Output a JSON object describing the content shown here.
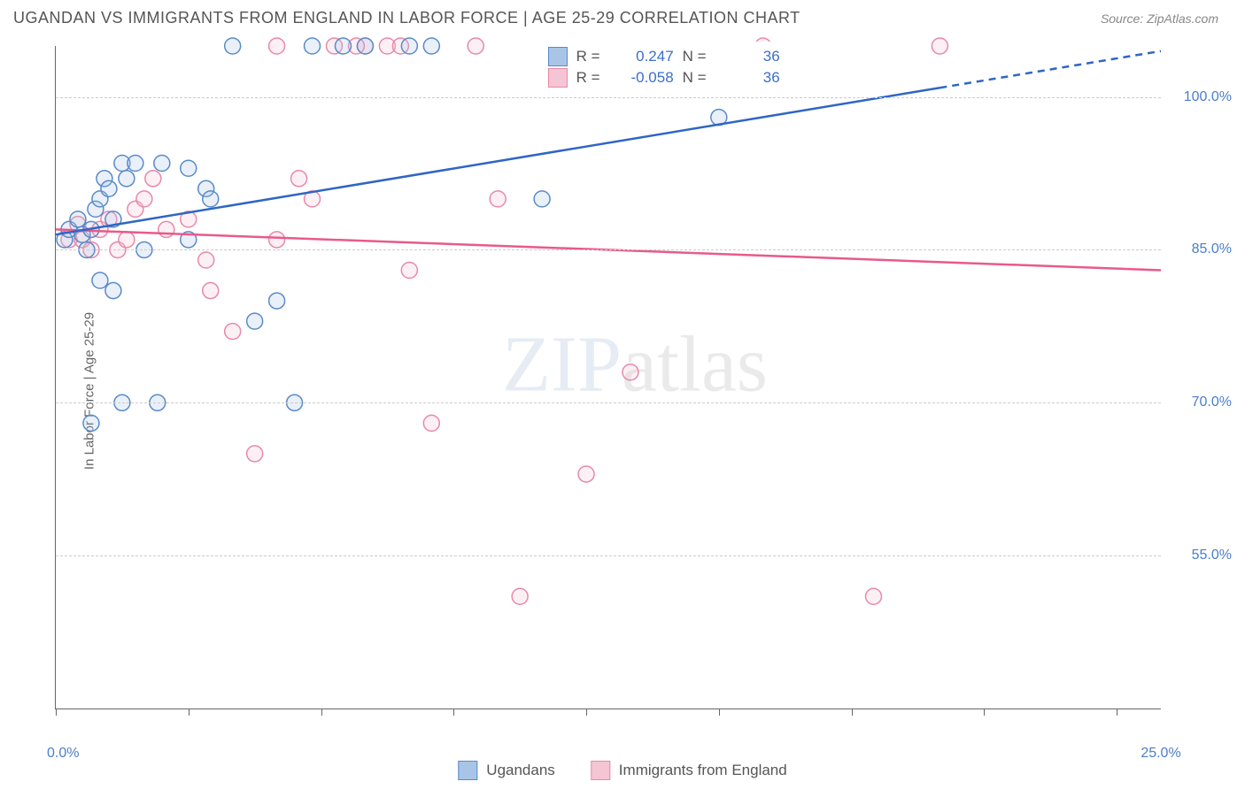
{
  "header": {
    "title": "UGANDAN VS IMMIGRANTS FROM ENGLAND IN LABOR FORCE | AGE 25-29 CORRELATION CHART",
    "source": "Source: ZipAtlas.com"
  },
  "chart": {
    "type": "scatter",
    "ylabel": "In Labor Force | Age 25-29",
    "xlim": [
      0,
      25
    ],
    "ylim": [
      40,
      105
    ],
    "y_ticks": [
      55.0,
      70.0,
      85.0,
      100.0
    ],
    "y_tick_labels": [
      "55.0%",
      "70.0%",
      "85.0%",
      "100.0%"
    ],
    "x_ticks": [
      0,
      3,
      6,
      9,
      12,
      15,
      18,
      21,
      24
    ],
    "x_tick_labels_shown": {
      "0": "0.0%",
      "25": "25.0%"
    },
    "background_color": "#ffffff",
    "grid_color": "#cccccc",
    "axis_color": "#666666",
    "marker_radius": 9,
    "marker_stroke_width": 1.5,
    "marker_fill_opacity": 0.25,
    "line_width": 2.5,
    "series": {
      "ugandans": {
        "label": "Ugandans",
        "color_stroke": "#5a8ac9",
        "color_fill": "#a8c5e8",
        "line_color": "#2e66c4",
        "R": "0.247",
        "N": "36",
        "trend": {
          "x1": 0,
          "y1": 86.5,
          "x2": 25,
          "y2": 104.5,
          "dash_after_x": 20
        },
        "points": [
          [
            0.2,
            86
          ],
          [
            0.3,
            87
          ],
          [
            0.5,
            88
          ],
          [
            0.6,
            86.5
          ],
          [
            0.7,
            85
          ],
          [
            0.8,
            87
          ],
          [
            0.9,
            89
          ],
          [
            1.0,
            90
          ],
          [
            1.1,
            92
          ],
          [
            1.2,
            91
          ],
          [
            1.3,
            88
          ],
          [
            1.5,
            93.5
          ],
          [
            1.6,
            92
          ],
          [
            1.8,
            93.5
          ],
          [
            2.0,
            85
          ],
          [
            1.3,
            81
          ],
          [
            0.8,
            68
          ],
          [
            2.3,
            70
          ],
          [
            2.4,
            93.5
          ],
          [
            3.0,
            93
          ],
          [
            3.4,
            91
          ],
          [
            3.5,
            90
          ],
          [
            4.0,
            105
          ],
          [
            4.5,
            78
          ],
          [
            1.5,
            70
          ],
          [
            5.0,
            80
          ],
          [
            5.4,
            70
          ],
          [
            6.5,
            105
          ],
          [
            7.0,
            105
          ],
          [
            8.0,
            105
          ],
          [
            8.5,
            105
          ],
          [
            11.0,
            90
          ],
          [
            15.0,
            98
          ],
          [
            5.8,
            105
          ],
          [
            1.0,
            82
          ],
          [
            3.0,
            86
          ]
        ]
      },
      "england": {
        "label": "Immigrants from England",
        "color_stroke": "#e889a7",
        "color_fill": "#f5c5d3",
        "line_color": "#e85a8a",
        "R": "-0.058",
        "N": "36",
        "trend": {
          "x1": 0,
          "y1": 87,
          "x2": 25,
          "y2": 83
        },
        "points": [
          [
            0.3,
            86
          ],
          [
            0.5,
            87.5
          ],
          [
            0.6,
            86
          ],
          [
            0.8,
            85
          ],
          [
            1.0,
            87
          ],
          [
            1.2,
            88
          ],
          [
            1.4,
            85
          ],
          [
            1.6,
            86
          ],
          [
            1.8,
            89
          ],
          [
            2.0,
            90
          ],
          [
            2.2,
            92
          ],
          [
            2.5,
            87
          ],
          [
            3.4,
            84
          ],
          [
            3.5,
            81
          ],
          [
            4.0,
            77
          ],
          [
            4.5,
            65
          ],
          [
            5.0,
            86
          ],
          [
            5.5,
            92
          ],
          [
            5.0,
            105
          ],
          [
            5.8,
            90
          ],
          [
            6.3,
            105
          ],
          [
            7.0,
            105
          ],
          [
            7.5,
            105
          ],
          [
            8.5,
            68
          ],
          [
            8.0,
            83
          ],
          [
            9.5,
            105
          ],
          [
            10.0,
            90
          ],
          [
            10.5,
            51
          ],
          [
            12.0,
            63
          ],
          [
            13.0,
            73
          ],
          [
            16.0,
            105
          ],
          [
            18.5,
            51
          ],
          [
            20.0,
            105
          ],
          [
            7.8,
            105
          ],
          [
            6.8,
            105
          ],
          [
            3.0,
            88
          ]
        ]
      }
    },
    "watermark": {
      "part1": "ZIP",
      "part2": "atlas"
    }
  },
  "legend_stats": {
    "r_label": "R =",
    "n_label": "N ="
  }
}
